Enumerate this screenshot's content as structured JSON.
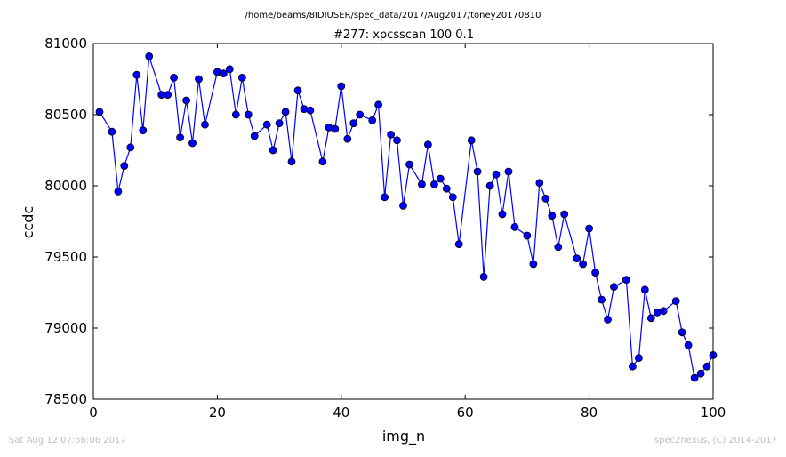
{
  "suptitle": "/home/beams/8IDIUSER/spec_data/2017/Aug2017/toney20170810",
  "footer": {
    "timestamp": "Sat Aug 12 07:56:06 2017",
    "credit": "spec2nexus, (C) 2014-2017"
  },
  "colors": {
    "series": "#0000ff",
    "footer": "#bfbfbf"
  },
  "chart_data": {
    "type": "line",
    "title": "#277: xpcsscan 100 0.1",
    "xlabel": "img_n",
    "ylabel": "ccdc",
    "xlim": [
      0,
      100
    ],
    "ylim": [
      78500,
      81000
    ],
    "xticks": [
      "0",
      "20",
      "40",
      "60",
      "80",
      "100"
    ],
    "yticks": [
      "78500",
      "79000",
      "79500",
      "80000",
      "80500",
      "81000"
    ],
    "grid": false,
    "marker": "circle",
    "series": [
      {
        "x": [
          1,
          3,
          4,
          5,
          6,
          7,
          8,
          9,
          11,
          12,
          13,
          14,
          15,
          16,
          17,
          18,
          20,
          21,
          22,
          23,
          24,
          25,
          26,
          28,
          29,
          30,
          31,
          32,
          33,
          34,
          35,
          37,
          38,
          39,
          40,
          41,
          42,
          43,
          45,
          46,
          47,
          48,
          49,
          50,
          51,
          53,
          54,
          55,
          56,
          57,
          58,
          59,
          61,
          62,
          63,
          64,
          65,
          66,
          67,
          68,
          70,
          71,
          72,
          73,
          74,
          75,
          76,
          78,
          79,
          80,
          81,
          82,
          83,
          84,
          86,
          87,
          88,
          89,
          90,
          91,
          92,
          94,
          95,
          96,
          97,
          98,
          99,
          100
        ],
        "y": [
          80520,
          80380,
          79960,
          80140,
          80270,
          80780,
          80390,
          80910,
          80640,
          80640,
          80760,
          80340,
          80600,
          80300,
          80750,
          80430,
          80800,
          80790,
          80820,
          80500,
          80760,
          80500,
          80350,
          80430,
          80250,
          80440,
          80520,
          80170,
          80670,
          80540,
          80530,
          80170,
          80410,
          80400,
          80700,
          80330,
          80440,
          80500,
          80460,
          80570,
          79920,
          80360,
          80320,
          79860,
          80150,
          80010,
          80290,
          80010,
          80050,
          79980,
          79920,
          79590,
          80320,
          80100,
          79360,
          80000,
          80080,
          79800,
          80100,
          79710,
          79650,
          79450,
          80020,
          79910,
          79790,
          79570,
          79800,
          79490,
          79450,
          79700,
          79390,
          79200,
          79060,
          79290,
          79340,
          78730,
          78790,
          79270,
          79070,
          79110,
          79120,
          79190,
          78970,
          78880,
          78650,
          78680,
          78730,
          78810
        ]
      }
    ]
  }
}
